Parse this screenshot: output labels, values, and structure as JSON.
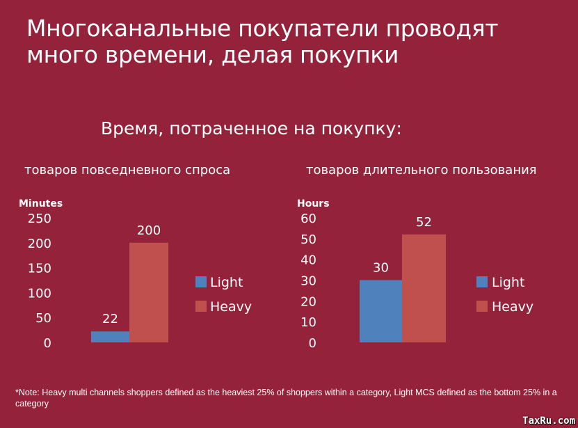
{
  "title_line1": "Многоканальные покупатели проводят",
  "title_line2": "много времени, делая покупки",
  "subtitle": "Время, потраченное на покупку:",
  "note": "*Note:  Heavy multi channels shoppers defined as the heaviest 25% of shoppers within a category, Light MCS defined as the bottom 25% in a category",
  "watermark": "TaxRu.com",
  "colors": {
    "background": "#93223A",
    "light": "#4F81BD",
    "heavy": "#C0504D"
  },
  "chart_data": [
    {
      "type": "bar",
      "title": "товаров повседневного спроса",
      "ylabel": "Minutes",
      "ylim": [
        0,
        250
      ],
      "yticks": [
        0,
        50,
        100,
        150,
        200,
        250
      ],
      "series": [
        {
          "name": "Light",
          "values": [
            22
          ]
        },
        {
          "name": "Heavy",
          "values": [
            200
          ]
        }
      ],
      "legend": "right"
    },
    {
      "type": "bar",
      "title": "товаров длительного пользования",
      "ylabel": "Hours",
      "ylim": [
        0,
        60
      ],
      "yticks": [
        0,
        10,
        20,
        30,
        40,
        50,
        60
      ],
      "series": [
        {
          "name": "Light",
          "values": [
            30
          ]
        },
        {
          "name": "Heavy",
          "values": [
            52
          ]
        }
      ],
      "legend": "right"
    }
  ]
}
